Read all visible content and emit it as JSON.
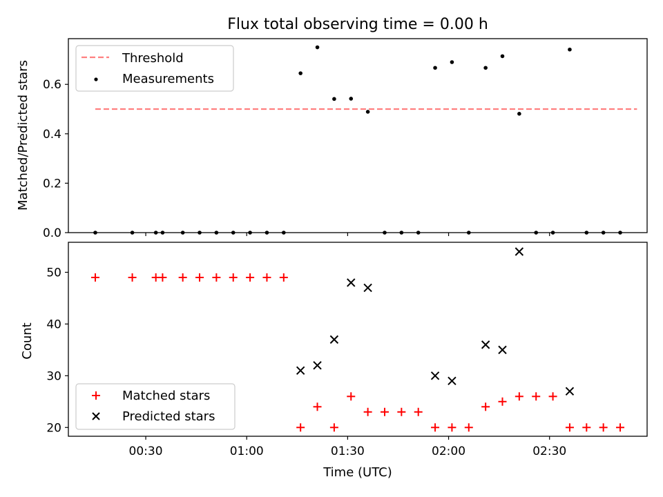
{
  "chart_data": [
    {
      "type": "scatter",
      "title": "Flux total observing time = 0.00 h",
      "xlabel": "",
      "ylabel": "Matched/Predicted stars",
      "ylim": [
        0,
        0.785
      ],
      "grid": false,
      "legend_position": "upper-left",
      "yticks": [
        {
          "value": 0.0,
          "label": "0.0"
        },
        {
          "value": 0.2,
          "label": "0.2"
        },
        {
          "value": 0.4,
          "label": "0.4"
        },
        {
          "value": 0.6,
          "label": "0.6"
        }
      ],
      "threshold": {
        "name": "Threshold",
        "value": 0.5,
        "x_from": "00:15",
        "x_to": "02:56",
        "color": "#ff7f7f"
      },
      "series": [
        {
          "name": "Measurements",
          "marker": "dot",
          "color": "#000000",
          "points": [
            {
              "x": "00:15",
              "y": 0.0
            },
            {
              "x": "00:26",
              "y": 0.0
            },
            {
              "x": "00:33",
              "y": 0.0
            },
            {
              "x": "00:35",
              "y": 0.0
            },
            {
              "x": "00:41",
              "y": 0.0
            },
            {
              "x": "00:46",
              "y": 0.0
            },
            {
              "x": "00:51",
              "y": 0.0
            },
            {
              "x": "00:56",
              "y": 0.0
            },
            {
              "x": "01:01",
              "y": 0.0
            },
            {
              "x": "01:06",
              "y": 0.0
            },
            {
              "x": "01:11",
              "y": 0.0
            },
            {
              "x": "01:16",
              "y": 0.645
            },
            {
              "x": "01:21",
              "y": 0.75
            },
            {
              "x": "01:26",
              "y": 0.541
            },
            {
              "x": "01:31",
              "y": 0.542
            },
            {
              "x": "01:36",
              "y": 0.489
            },
            {
              "x": "01:41",
              "y": 0.0
            },
            {
              "x": "01:46",
              "y": 0.0
            },
            {
              "x": "01:51",
              "y": 0.0
            },
            {
              "x": "01:56",
              "y": 0.667
            },
            {
              "x": "02:01",
              "y": 0.69
            },
            {
              "x": "02:06",
              "y": 0.0
            },
            {
              "x": "02:11",
              "y": 0.667
            },
            {
              "x": "02:16",
              "y": 0.714
            },
            {
              "x": "02:21",
              "y": 0.481
            },
            {
              "x": "02:26",
              "y": 0.0
            },
            {
              "x": "02:31",
              "y": 0.0
            },
            {
              "x": "02:36",
              "y": 0.741
            },
            {
              "x": "02:41",
              "y": 0.0
            },
            {
              "x": "02:46",
              "y": 0.0
            },
            {
              "x": "02:51",
              "y": 0.0
            }
          ]
        }
      ]
    },
    {
      "type": "scatter",
      "title": "",
      "xlabel": "Time (UTC)",
      "ylabel": "Count",
      "ylim": [
        18.3,
        55.8
      ],
      "xlim": [
        "00:07",
        "02:59"
      ],
      "grid": false,
      "legend_position": "lower-left",
      "yticks": [
        {
          "value": 20,
          "label": "20"
        },
        {
          "value": 30,
          "label": "30"
        },
        {
          "value": 40,
          "label": "40"
        },
        {
          "value": 50,
          "label": "50"
        }
      ],
      "xticks": [
        {
          "value": "00:30",
          "label": "00:30"
        },
        {
          "value": "01:00",
          "label": "01:00"
        },
        {
          "value": "01:30",
          "label": "01:30"
        },
        {
          "value": "02:00",
          "label": "02:00"
        },
        {
          "value": "02:30",
          "label": "02:30"
        }
      ],
      "series": [
        {
          "name": "Matched stars",
          "marker": "plus",
          "color": "#ff0000",
          "points": [
            {
              "x": "00:15",
              "y": 49
            },
            {
              "x": "00:26",
              "y": 49
            },
            {
              "x": "00:33",
              "y": 49
            },
            {
              "x": "00:35",
              "y": 49
            },
            {
              "x": "00:41",
              "y": 49
            },
            {
              "x": "00:46",
              "y": 49
            },
            {
              "x": "00:51",
              "y": 49
            },
            {
              "x": "00:56",
              "y": 49
            },
            {
              "x": "01:01",
              "y": 49
            },
            {
              "x": "01:06",
              "y": 49
            },
            {
              "x": "01:11",
              "y": 49
            },
            {
              "x": "01:16",
              "y": 20
            },
            {
              "x": "01:21",
              "y": 24
            },
            {
              "x": "01:26",
              "y": 20
            },
            {
              "x": "01:31",
              "y": 26
            },
            {
              "x": "01:36",
              "y": 23
            },
            {
              "x": "01:41",
              "y": 23
            },
            {
              "x": "01:46",
              "y": 23
            },
            {
              "x": "01:51",
              "y": 23
            },
            {
              "x": "01:56",
              "y": 20
            },
            {
              "x": "02:01",
              "y": 20
            },
            {
              "x": "02:06",
              "y": 20
            },
            {
              "x": "02:11",
              "y": 24
            },
            {
              "x": "02:16",
              "y": 25
            },
            {
              "x": "02:21",
              "y": 26
            },
            {
              "x": "02:26",
              "y": 26
            },
            {
              "x": "02:31",
              "y": 26
            },
            {
              "x": "02:36",
              "y": 20
            },
            {
              "x": "02:41",
              "y": 20
            },
            {
              "x": "02:46",
              "y": 20
            },
            {
              "x": "02:51",
              "y": 20
            }
          ]
        },
        {
          "name": "Predicted stars",
          "marker": "x",
          "color": "#000000",
          "points": [
            {
              "x": "01:16",
              "y": 31
            },
            {
              "x": "01:21",
              "y": 32
            },
            {
              "x": "01:26",
              "y": 37
            },
            {
              "x": "01:31",
              "y": 48
            },
            {
              "x": "01:36",
              "y": 47
            },
            {
              "x": "01:56",
              "y": 30
            },
            {
              "x": "02:01",
              "y": 29
            },
            {
              "x": "02:11",
              "y": 36
            },
            {
              "x": "02:16",
              "y": 35
            },
            {
              "x": "02:21",
              "y": 54
            },
            {
              "x": "02:36",
              "y": 27
            }
          ]
        }
      ]
    }
  ]
}
